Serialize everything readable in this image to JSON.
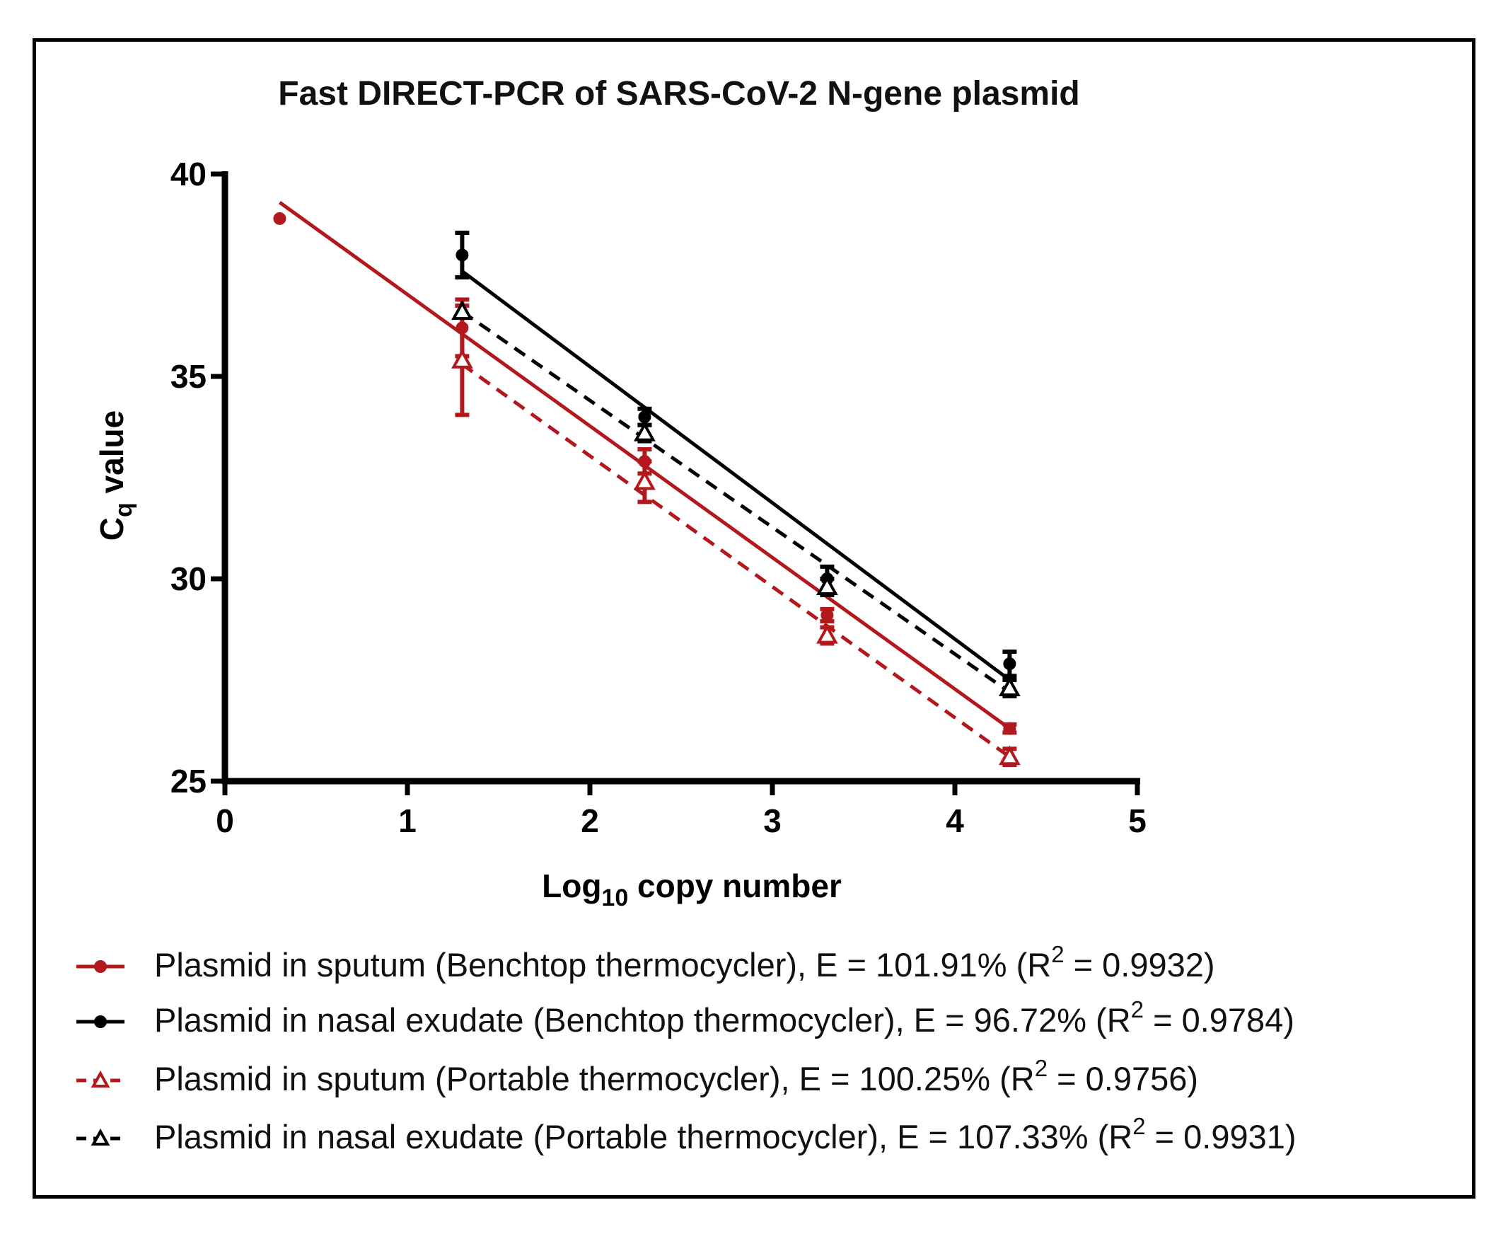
{
  "chart_data": {
    "type": "scatter",
    "title": "Fast DIRECT-PCR of SARS-CoV-2 N-gene plasmid",
    "xlabel": {
      "main": "Log",
      "sub": "10",
      "rest": " copy number"
    },
    "ylabel": {
      "main": "C",
      "sub": "q",
      "rest": " value"
    },
    "xlim": [
      0,
      5
    ],
    "ylim": [
      25,
      40
    ],
    "xticks": [
      0,
      1,
      2,
      3,
      4,
      5
    ],
    "yticks": [
      25,
      30,
      35,
      40
    ],
    "grid": false,
    "legend_position": "bottom",
    "series": [
      {
        "name": "Plasmid in sputum (Benchtop thermocycler),  E = 101.91% (R",
        "r2_text": " = 0.9932)",
        "color": "#b3191c",
        "marker": "circle",
        "line_style": "solid",
        "x": [
          0.3,
          1.3,
          2.3,
          3.3,
          4.3
        ],
        "y": [
          38.9,
          36.2,
          32.9,
          29.1,
          26.3
        ],
        "err": [
          0,
          0.7,
          0.3,
          0.15,
          0.1
        ],
        "fit": {
          "x": [
            0.3,
            4.3
          ],
          "y": [
            39.3,
            26.3
          ]
        }
      },
      {
        "name": "Plasmid in nasal exudate (Benchtop thermocycler), E = 96.72% (R",
        "r2_text": " = 0.9784)",
        "color": "#000000",
        "marker": "circle",
        "line_style": "solid",
        "x": [
          1.3,
          2.3,
          3.3,
          4.3
        ],
        "y": [
          38.0,
          34.0,
          30.0,
          27.9
        ],
        "err": [
          0.55,
          0.2,
          0.3,
          0.3
        ],
        "fit": {
          "x": [
            1.3,
            4.3
          ],
          "y": [
            37.6,
            27.5
          ]
        }
      },
      {
        "name": "Plasmid in sputum (Portable thermocycler), E = 100.25% (R",
        "r2_text": " = 0.9756)",
        "color": "#b3191c",
        "marker": "triangle",
        "line_style": "dashed",
        "x": [
          1.3,
          2.3,
          3.3,
          4.3
        ],
        "y": [
          35.4,
          32.4,
          28.6,
          25.6
        ],
        "err": [
          1.35,
          0.5,
          0.2,
          0.2
        ],
        "fit": {
          "x": [
            1.3,
            4.3
          ],
          "y": [
            35.3,
            25.6
          ]
        }
      },
      {
        "name": "Plasmid in nasal exudate (Portable thermocycler), E = 107.33% (R",
        "r2_text": " = 0.9931)",
        "color": "#000000",
        "marker": "triangle",
        "line_style": "dashed",
        "x": [
          1.3,
          2.3,
          3.3,
          4.3
        ],
        "y": [
          36.6,
          33.6,
          29.8,
          27.3
        ],
        "err": [
          0,
          0.2,
          0.2,
          0.2
        ],
        "fit": {
          "x": [
            1.3,
            4.3
          ],
          "y": [
            36.6,
            27.2
          ]
        }
      }
    ]
  }
}
